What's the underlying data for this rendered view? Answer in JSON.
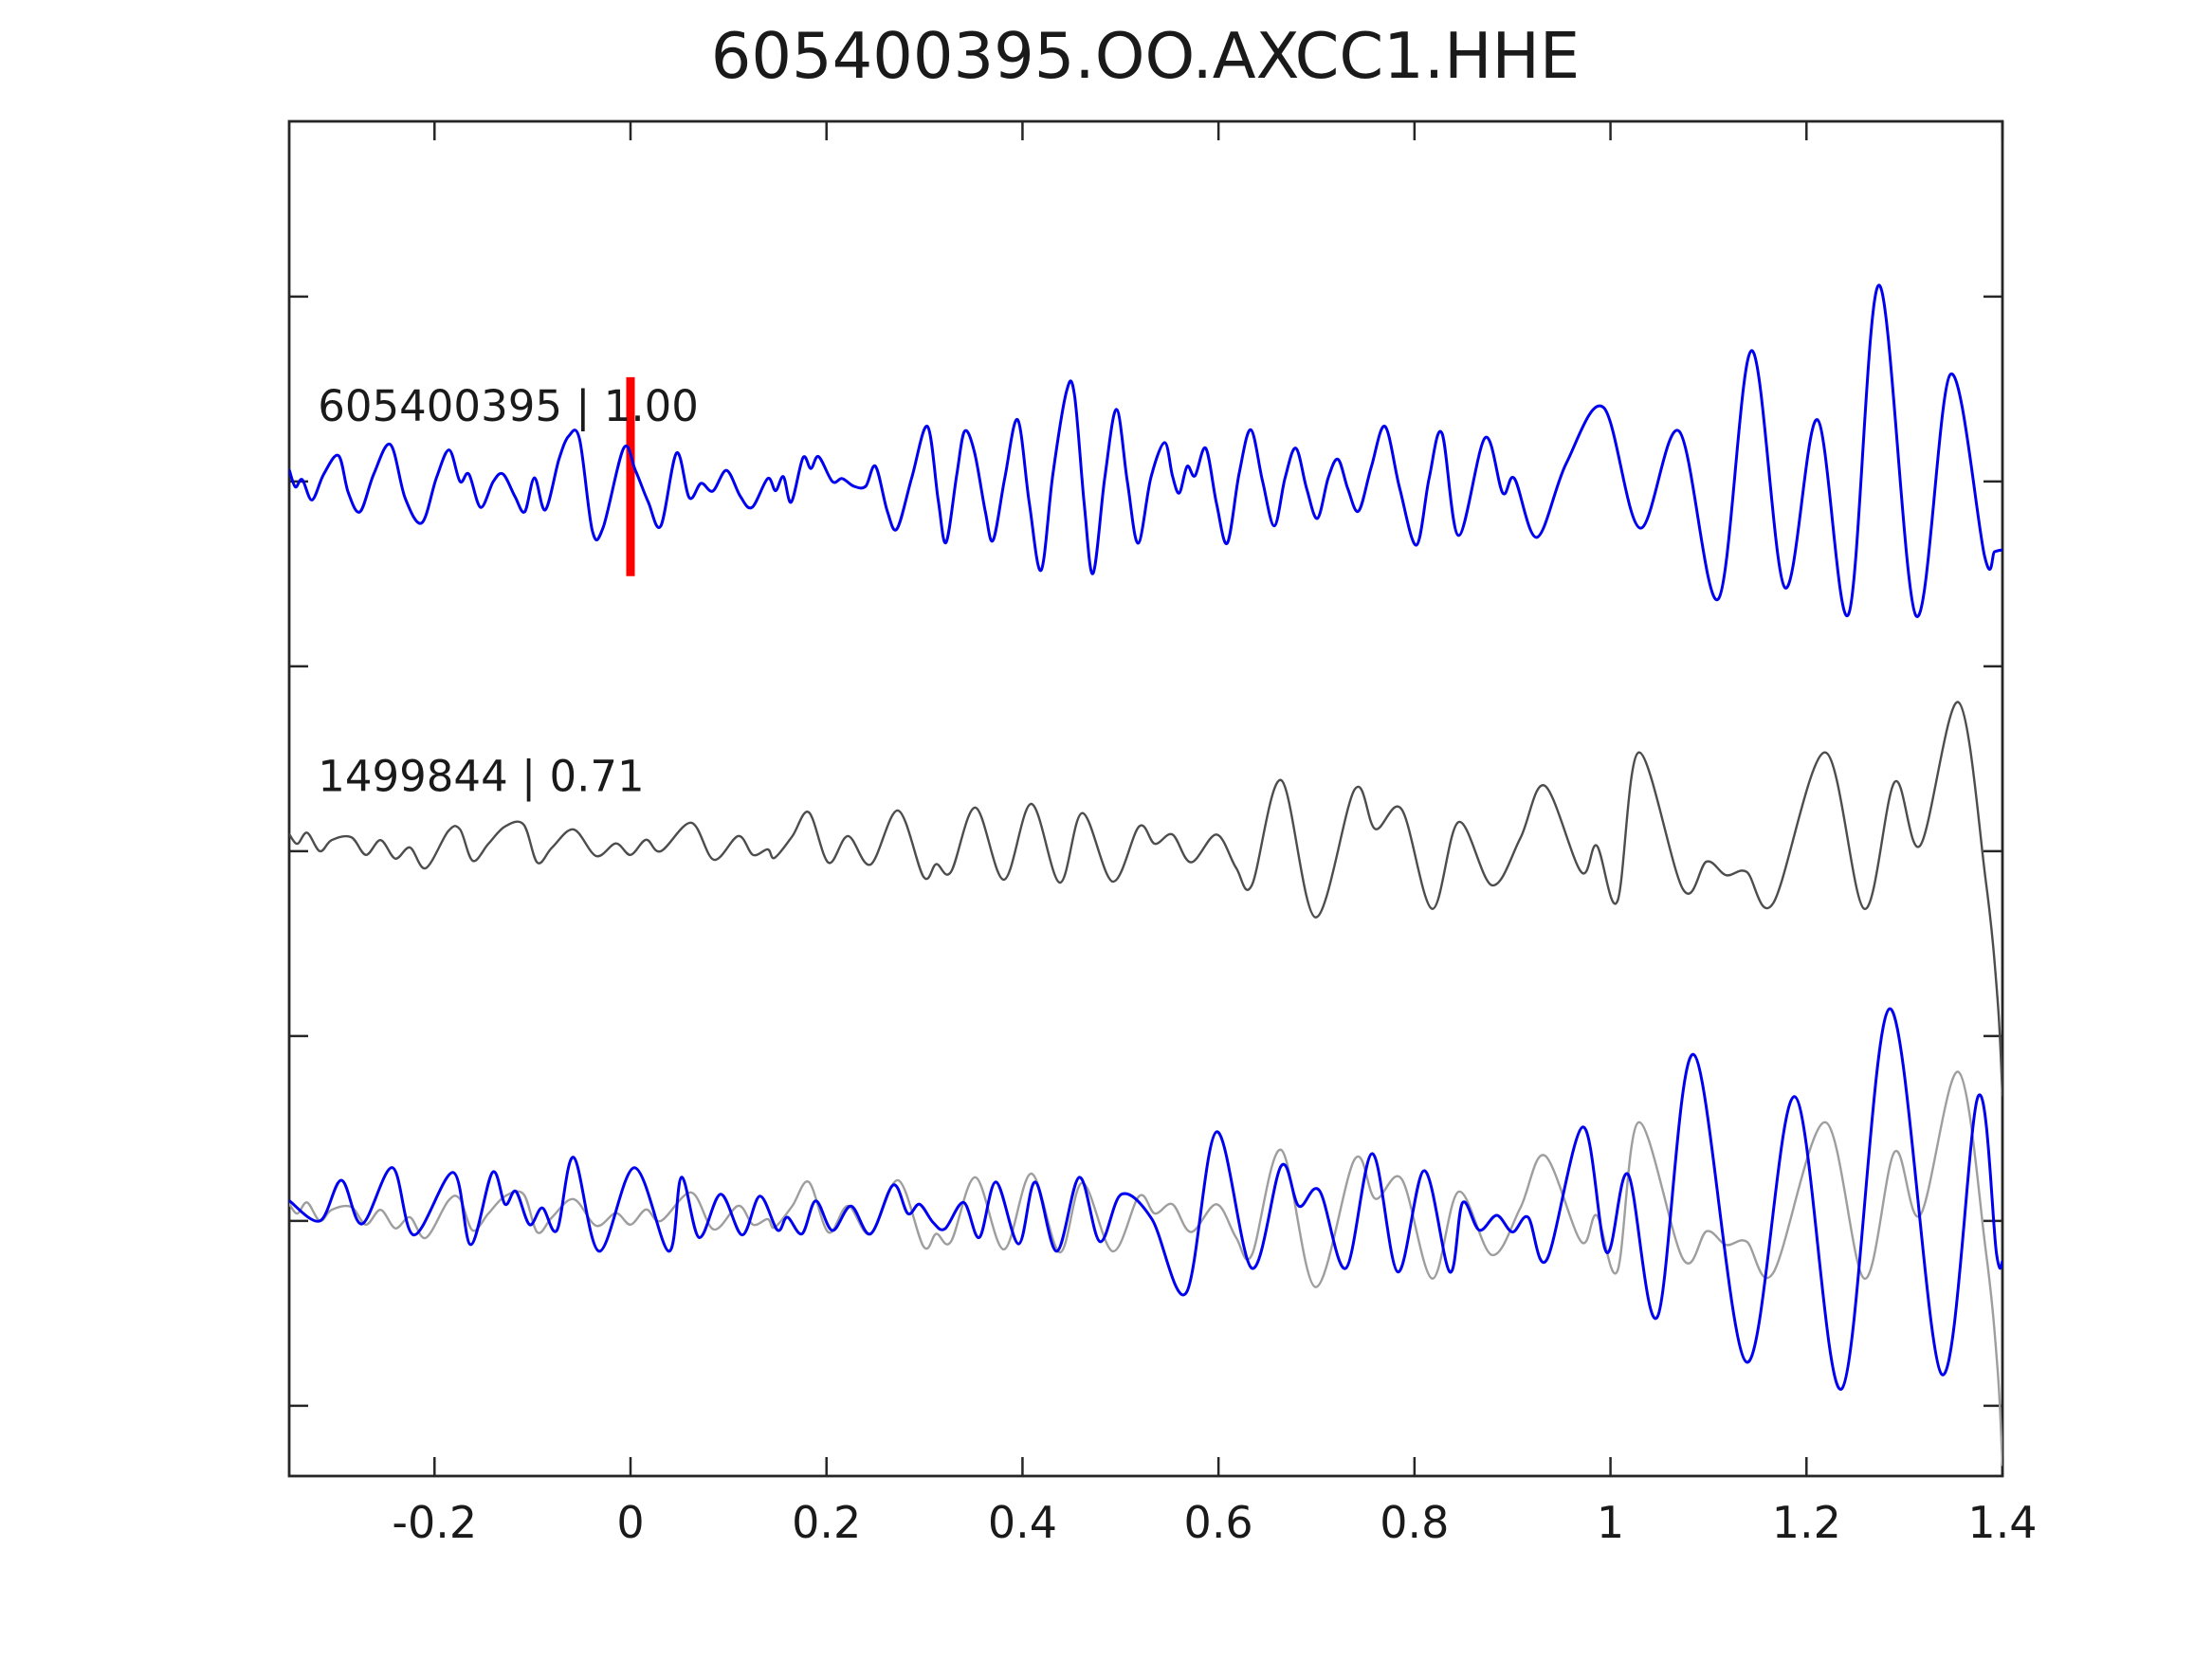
{
  "title": "605400395.OO.AXCC1.HHE",
  "chart_data": {
    "type": "line",
    "title": "605400395.OO.AXCC1.HHE",
    "xlabel": "",
    "ylabel": "",
    "grid": false,
    "background": "#ffffff",
    "spine_color": "#262626",
    "xlim": [
      -0.3483,
      1.4
    ],
    "ylim": [
      -0.69,
      2.974
    ],
    "x_ticks": [
      -0.2,
      0,
      0.2,
      0.4,
      0.6,
      0.8,
      1,
      1.2,
      1.4
    ],
    "x_tick_labels": [
      "-0.2",
      "0",
      "0.2",
      "0.4",
      "0.6",
      "0.8",
      "1",
      "1.2",
      "1.4"
    ],
    "y_ticks": [
      -0.5,
      0,
      0.5,
      1,
      1.5,
      2,
      2.5
    ],
    "y_tick_labels": [
      "",
      "",
      "",
      "",
      "",
      "",
      ""
    ],
    "tick_direction": "in",
    "legend_position": "none",
    "pick_line": {
      "x": 0,
      "y1": 1.744,
      "y2": 2.282,
      "color": "#ff0000",
      "width": 9
    },
    "annotations": [
      {
        "id": "template-label",
        "text": "605400395 | 1.00",
        "x": -0.319,
        "y": 2.164
      },
      {
        "id": "detection-label",
        "text": "1499844 | 0.71",
        "x": -0.319,
        "y": 1.162
      }
    ],
    "series": [
      {
        "name": "template",
        "label": "605400395 | 1.00",
        "row_offset": 2,
        "color": "#0000f0",
        "linewidth": 3.0,
        "waveform": "template"
      },
      {
        "name": "detection",
        "label": "1499844 | 0.71",
        "row_offset": 1,
        "color": "#4d4d4d",
        "linewidth": 2.4,
        "waveform": "detection"
      },
      {
        "name": "detection-aligned-overlay",
        "label": "",
        "row_offset": 0,
        "color": "#9e9e9e",
        "linewidth": 2.4,
        "waveform": "detection"
      },
      {
        "name": "template-aligned-overlay",
        "label": "",
        "row_offset": 0,
        "color": "#0000f0",
        "linewidth": 3.0,
        "waveform": "aligned_template"
      }
    ],
    "waveforms": {
      "template": [
        [
          -0.348,
          0.03
        ],
        [
          -0.342,
          -0.015
        ],
        [
          -0.335,
          0.005
        ],
        [
          -0.325,
          -0.05
        ],
        [
          -0.313,
          0.02
        ],
        [
          -0.298,
          0.07
        ],
        [
          -0.288,
          -0.03
        ],
        [
          -0.276,
          -0.082
        ],
        [
          -0.262,
          0.02
        ],
        [
          -0.245,
          0.1
        ],
        [
          -0.23,
          -0.045
        ],
        [
          -0.213,
          -0.112
        ],
        [
          -0.198,
          0.01
        ],
        [
          -0.185,
          0.085
        ],
        [
          -0.174,
          0
        ],
        [
          -0.165,
          0.02
        ],
        [
          -0.153,
          -0.07
        ],
        [
          -0.14,
          0
        ],
        [
          -0.13,
          0.02
        ],
        [
          -0.118,
          -0.04
        ],
        [
          -0.108,
          -0.082
        ],
        [
          -0.098,
          0.01
        ],
        [
          -0.087,
          -0.077
        ],
        [
          -0.073,
          0.06
        ],
        [
          -0.063,
          0.123
        ],
        [
          -0.052,
          0.115
        ],
        [
          -0.039,
          -0.133
        ],
        [
          -0.028,
          -0.125
        ],
        [
          -0.007,
          0.09
        ],
        [
          0.005,
          0.03
        ],
        [
          0.018,
          -0.055
        ],
        [
          0.031,
          -0.12
        ],
        [
          0.047,
          0.077
        ],
        [
          0.06,
          -0.044
        ],
        [
          0.072,
          -0.005
        ],
        [
          0.084,
          -0.026
        ],
        [
          0.098,
          0.03
        ],
        [
          0.112,
          -0.04
        ],
        [
          0.124,
          -0.07
        ],
        [
          0.14,
          0.008
        ],
        [
          0.148,
          -0.025
        ],
        [
          0.156,
          0.013
        ],
        [
          0.164,
          -0.056
        ],
        [
          0.176,
          0.064
        ],
        [
          0.184,
          0.035
        ],
        [
          0.192,
          0.067
        ],
        [
          0.206,
          0
        ],
        [
          0.216,
          0.008
        ],
        [
          0.228,
          -0.013
        ],
        [
          0.24,
          -0.013
        ],
        [
          0.25,
          0.041
        ],
        [
          0.262,
          -0.08
        ],
        [
          0.272,
          -0.128
        ],
        [
          0.287,
          0.01
        ],
        [
          0.303,
          0.149
        ],
        [
          0.314,
          -0.05
        ],
        [
          0.322,
          -0.165
        ],
        [
          0.333,
          0.02
        ],
        [
          0.341,
          0.136
        ],
        [
          0.351,
          0.079
        ],
        [
          0.362,
          -0.08
        ],
        [
          0.37,
          -0.159
        ],
        [
          0.382,
          0.01
        ],
        [
          0.395,
          0.167
        ],
        [
          0.407,
          -0.06
        ],
        [
          0.419,
          -0.24
        ],
        [
          0.431,
          0.02
        ],
        [
          0.445,
          0.244
        ],
        [
          0.453,
          0.235
        ],
        [
          0.463,
          -0.06
        ],
        [
          0.472,
          -0.249
        ],
        [
          0.484,
          0.01
        ],
        [
          0.496,
          0.195
        ],
        [
          0.507,
          0
        ],
        [
          0.518,
          -0.167
        ],
        [
          0.531,
          0.01
        ],
        [
          0.545,
          0.105
        ],
        [
          0.553,
          0.015
        ],
        [
          0.56,
          -0.031
        ],
        [
          0.568,
          0.041
        ],
        [
          0.576,
          0.015
        ],
        [
          0.587,
          0.09
        ],
        [
          0.598,
          -0.06
        ],
        [
          0.609,
          -0.167
        ],
        [
          0.621,
          0.02
        ],
        [
          0.633,
          0.14
        ],
        [
          0.645,
          0
        ],
        [
          0.657,
          -0.12
        ],
        [
          0.668,
          0.01
        ],
        [
          0.679,
          0.09
        ],
        [
          0.69,
          -0.02
        ],
        [
          0.701,
          -0.1
        ],
        [
          0.712,
          0.01
        ],
        [
          0.722,
          0.06
        ],
        [
          0.732,
          -0.02
        ],
        [
          0.743,
          -0.08
        ],
        [
          0.756,
          0.04
        ],
        [
          0.77,
          0.149
        ],
        [
          0.785,
          -0.02
        ],
        [
          0.802,
          -0.172
        ],
        [
          0.815,
          0.01
        ],
        [
          0.828,
          0.131
        ],
        [
          0.845,
          -0.146
        ],
        [
          0.872,
          0.118
        ],
        [
          0.89,
          -0.031
        ],
        [
          0.902,
          0.008
        ],
        [
          0.925,
          -0.151
        ],
        [
          0.955,
          0.05
        ],
        [
          0.993,
          0.2
        ],
        [
          1.03,
          -0.126
        ],
        [
          1.07,
          0.136
        ],
        [
          1.11,
          -0.318
        ],
        [
          1.144,
          0.354
        ],
        [
          1.178,
          -0.287
        ],
        [
          1.211,
          0.167
        ],
        [
          1.243,
          -0.359
        ],
        [
          1.274,
          0.531
        ],
        [
          1.312,
          -0.364
        ],
        [
          1.347,
          0.29
        ],
        [
          1.382,
          -0.205
        ],
        [
          1.392,
          -0.19
        ],
        [
          1.4,
          -0.185
        ]
      ],
      "detection": [
        [
          -0.348,
          0.045
        ],
        [
          -0.34,
          0.02
        ],
        [
          -0.33,
          0.05
        ],
        [
          -0.317,
          0
        ],
        [
          -0.305,
          0.03
        ],
        [
          -0.285,
          0.038
        ],
        [
          -0.27,
          -0.01
        ],
        [
          -0.255,
          0.03
        ],
        [
          -0.24,
          -0.02
        ],
        [
          -0.225,
          0.01
        ],
        [
          -0.209,
          -0.046
        ],
        [
          -0.186,
          0.054
        ],
        [
          -0.174,
          0.059
        ],
        [
          -0.161,
          -0.026
        ],
        [
          -0.145,
          0.02
        ],
        [
          -0.128,
          0.067
        ],
        [
          -0.109,
          0.072
        ],
        [
          -0.095,
          -0.031
        ],
        [
          -0.08,
          0.01
        ],
        [
          -0.058,
          0.059
        ],
        [
          -0.035,
          -0.013
        ],
        [
          -0.015,
          0.021
        ],
        [
          0,
          -0.01
        ],
        [
          0.016,
          0.031
        ],
        [
          0.031,
          0
        ],
        [
          0.062,
          0.077
        ],
        [
          0.085,
          -0.023
        ],
        [
          0.11,
          0.041
        ],
        [
          0.125,
          -0.01
        ],
        [
          0.14,
          0.005
        ],
        [
          0.147,
          -0.018
        ],
        [
          0.165,
          0.04
        ],
        [
          0.182,
          0.105
        ],
        [
          0.202,
          -0.031
        ],
        [
          0.222,
          0.041
        ],
        [
          0.245,
          -0.036
        ],
        [
          0.273,
          0.11
        ],
        [
          0.299,
          -0.069
        ],
        [
          0.312,
          -0.035
        ],
        [
          0.327,
          -0.056
        ],
        [
          0.352,
          0.118
        ],
        [
          0.381,
          -0.077
        ],
        [
          0.409,
          0.128
        ],
        [
          0.438,
          -0.085
        ],
        [
          0.461,
          0.103
        ],
        [
          0.492,
          -0.082
        ],
        [
          0.519,
          0.067
        ],
        [
          0.535,
          0.02
        ],
        [
          0.553,
          0.045
        ],
        [
          0.572,
          -0.03
        ],
        [
          0.598,
          0.045
        ],
        [
          0.618,
          -0.045
        ],
        [
          0.634,
          -0.092
        ],
        [
          0.664,
          0.192
        ],
        [
          0.699,
          -0.179
        ],
        [
          0.739,
          0.167
        ],
        [
          0.76,
          0.06
        ],
        [
          0.787,
          0.113
        ],
        [
          0.818,
          -0.156
        ],
        [
          0.845,
          0.079
        ],
        [
          0.879,
          -0.092
        ],
        [
          0.908,
          0.035
        ],
        [
          0.933,
          0.177
        ],
        [
          0.97,
          -0.056
        ],
        [
          0.986,
          0.015
        ],
        [
          1.007,
          -0.136
        ],
        [
          1.029,
          0.267
        ],
        [
          1.074,
          -0.103
        ],
        [
          1.098,
          -0.028
        ],
        [
          1.118,
          -0.065
        ],
        [
          1.139,
          -0.056
        ],
        [
          1.166,
          -0.141
        ],
        [
          1.219,
          0.267
        ],
        [
          1.259,
          -0.156
        ],
        [
          1.29,
          0.187
        ],
        [
          1.316,
          0.015
        ],
        [
          1.355,
          0.403
        ],
        [
          1.383,
          -0.08
        ],
        [
          1.395,
          -0.4
        ],
        [
          1.4,
          -0.66
        ]
      ],
      "aligned_template": [
        [
          -0.348,
          0.054
        ],
        [
          -0.317,
          0
        ],
        [
          -0.295,
          0.11
        ],
        [
          -0.274,
          -0.008
        ],
        [
          -0.243,
          0.144
        ],
        [
          -0.221,
          -0.038
        ],
        [
          -0.181,
          0.131
        ],
        [
          -0.163,
          -0.064
        ],
        [
          -0.141,
          0.131
        ],
        [
          -0.128,
          0.045
        ],
        [
          -0.117,
          0.08
        ],
        [
          -0.103,
          -0.01
        ],
        [
          -0.09,
          0.035
        ],
        [
          -0.075,
          -0.025
        ],
        [
          -0.058,
          0.172
        ],
        [
          -0.032,
          -0.082
        ],
        [
          0.004,
          0.144
        ],
        [
          0.039,
          -0.082
        ],
        [
          0.052,
          0.118
        ],
        [
          0.07,
          -0.045
        ],
        [
          0.092,
          0.072
        ],
        [
          0.114,
          -0.038
        ],
        [
          0.132,
          0.067
        ],
        [
          0.15,
          -0.025
        ],
        [
          0.16,
          0.01
        ],
        [
          0.175,
          -0.035
        ],
        [
          0.189,
          0.054
        ],
        [
          0.206,
          -0.026
        ],
        [
          0.225,
          0.04
        ],
        [
          0.245,
          -0.035
        ],
        [
          0.268,
          0.097
        ],
        [
          0.283,
          0.02
        ],
        [
          0.295,
          0.045
        ],
        [
          0.309,
          -0.005
        ],
        [
          0.321,
          -0.021
        ],
        [
          0.34,
          0.05
        ],
        [
          0.356,
          -0.045
        ],
        [
          0.373,
          0.105
        ],
        [
          0.396,
          -0.062
        ],
        [
          0.413,
          0.105
        ],
        [
          0.435,
          -0.082
        ],
        [
          0.458,
          0.118
        ],
        [
          0.479,
          -0.056
        ],
        [
          0.501,
          0.072
        ],
        [
          0.532,
          0.005
        ],
        [
          0.567,
          -0.195
        ],
        [
          0.598,
          0.241
        ],
        [
          0.634,
          -0.128
        ],
        [
          0.664,
          0.149
        ],
        [
          0.682,
          0.04
        ],
        [
          0.703,
          0.082
        ],
        [
          0.73,
          -0.128
        ],
        [
          0.757,
          0.182
        ],
        [
          0.783,
          -0.138
        ],
        [
          0.81,
          0.136
        ],
        [
          0.836,
          -0.138
        ],
        [
          0.849,
          0.049
        ],
        [
          0.866,
          -0.025
        ],
        [
          0.884,
          0.015
        ],
        [
          0.9,
          -0.03
        ],
        [
          0.916,
          0.01
        ],
        [
          0.935,
          -0.105
        ],
        [
          0.972,
          0.254
        ],
        [
          0.996,
          -0.085
        ],
        [
          1.018,
          0.126
        ],
        [
          1.048,
          -0.259
        ],
        [
          1.085,
          0.45
        ],
        [
          1.139,
          -0.382
        ],
        [
          1.188,
          0.336
        ],
        [
          1.236,
          -0.454
        ],
        [
          1.285,
          0.574
        ],
        [
          1.338,
          -0.415
        ],
        [
          1.375,
          0.336
        ],
        [
          1.394,
          -0.09
        ],
        [
          1.4,
          -0.11
        ]
      ]
    },
    "layout": {
      "plot_left": 305,
      "plot_top": 128,
      "plot_right": 2112,
      "plot_bottom": 1557,
      "tick_length": 20,
      "tick_width": 2.5,
      "spine_width": 2.8,
      "title_x": 1208,
      "title_baseline": 82,
      "x_tick_label_baseline": 1622
    }
  }
}
